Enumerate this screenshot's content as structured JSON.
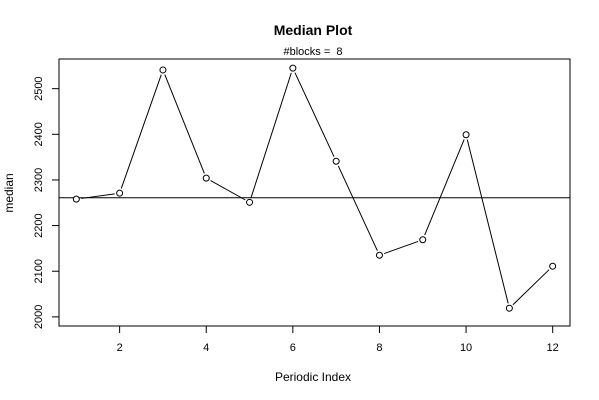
{
  "chart_data": {
    "type": "line",
    "title": "Median Plot",
    "subtitle": "#blocks =  8",
    "xlabel": "Periodic Index",
    "ylabel": "median",
    "x": [
      1,
      2,
      3,
      4,
      5,
      6,
      7,
      8,
      9,
      10,
      11,
      12
    ],
    "series": [
      {
        "values": [
          2258,
          2271,
          2541,
          2304,
          2251,
          2545,
          2341,
          2135,
          2169,
          2399,
          2019,
          2111
        ]
      }
    ],
    "reference_line": 2261,
    "xlim": [
      0.6,
      12.4
    ],
    "ylim": [
      1980,
      2565
    ],
    "xticks": [
      2,
      4,
      6,
      8,
      10,
      12
    ],
    "yticks": [
      2000,
      2100,
      2200,
      2300,
      2400,
      2500
    ],
    "marker": "open-circle",
    "grid": false,
    "line_color": "#000000",
    "reference_line_color": "#000000"
  }
}
